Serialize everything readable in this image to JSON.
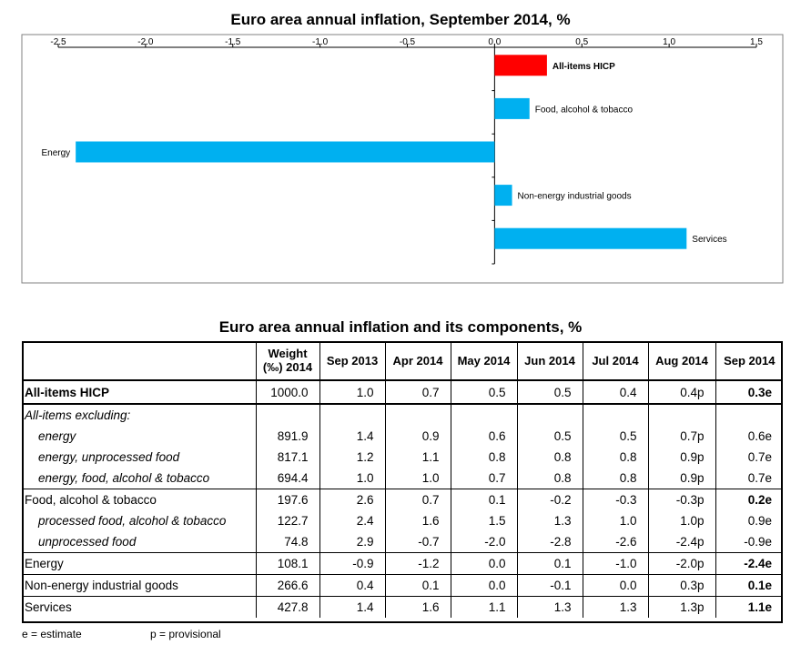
{
  "chart_data": {
    "type": "bar",
    "orientation": "horizontal",
    "title": "Euro area annual inflation, September 2014, %",
    "categories": [
      "All-items HICP",
      "Food, alcohol & tobacco",
      "Energy",
      "Non-energy industrial goods",
      "Services"
    ],
    "values": [
      0.3,
      0.2,
      -2.4,
      0.1,
      1.1
    ],
    "colors": [
      "#ff0000",
      "#00b0f0",
      "#00b0f0",
      "#00b0f0",
      "#00b0f0"
    ],
    "xlim": [
      -2.5,
      1.5
    ],
    "x_ticks": [
      -2.5,
      -2.0,
      -1.5,
      -1.0,
      -0.5,
      0.0,
      0.5,
      1.0,
      1.5
    ],
    "x_tick_labels": [
      "-2.5",
      "-2.0",
      "-1.5",
      "-1.0",
      "-0.5",
      "0.0",
      "0.5",
      "1.0",
      "1.5"
    ],
    "axis_position": "top",
    "grid": false,
    "xlabel": "",
    "ylabel": ""
  },
  "table": {
    "title": "Euro area annual inflation and its components, %",
    "headers": [
      "",
      "Weight (‰) 2014",
      "Sep 2013",
      "Apr 2014",
      "May 2014",
      "Jun 2014",
      "Jul 2014",
      "Aug 2014",
      "Sep 2014"
    ],
    "weight_header_line1": "Weight",
    "weight_header_line2": "(‰) 2014",
    "rows": [
      {
        "label": "All-items HICP",
        "values": [
          "1000.0",
          "1.0",
          "0.7",
          "0.5",
          "0.5",
          "0.4",
          "0.4p",
          "0.3e"
        ],
        "style": "bold-label"
      },
      {
        "label": "All-items excluding:",
        "values": [
          "",
          "",
          "",
          "",
          "",
          "",
          "",
          ""
        ],
        "style": "italic"
      },
      {
        "label": "energy",
        "values": [
          "891.9",
          "1.4",
          "0.9",
          "0.6",
          "0.5",
          "0.5",
          "0.7p",
          "0.6e"
        ],
        "style": "indent"
      },
      {
        "label": "energy, unprocessed food",
        "values": [
          "817.1",
          "1.2",
          "1.1",
          "0.8",
          "0.8",
          "0.8",
          "0.9p",
          "0.7e"
        ],
        "style": "indent"
      },
      {
        "label": "energy, food, alcohol & tobacco",
        "values": [
          "694.4",
          "1.0",
          "1.0",
          "0.7",
          "0.8",
          "0.8",
          "0.9p",
          "0.7e"
        ],
        "style": "indent"
      },
      {
        "label": "Food, alcohol & tobacco",
        "values": [
          "197.6",
          "2.6",
          "0.7",
          "0.1",
          "-0.2",
          "-0.3",
          "-0.3p",
          "0.2e"
        ],
        "style": "main"
      },
      {
        "label": "processed food, alcohol & tobacco",
        "values": [
          "122.7",
          "2.4",
          "1.6",
          "1.5",
          "1.3",
          "1.0",
          "1.0p",
          "0.9e"
        ],
        "style": "indent"
      },
      {
        "label": "unprocessed food",
        "values": [
          "74.8",
          "2.9",
          "-0.7",
          "-2.0",
          "-2.8",
          "-2.6",
          "-2.4p",
          "-0.9e"
        ],
        "style": "indent"
      },
      {
        "label": "Energy",
        "values": [
          "108.1",
          "-0.9",
          "-1.2",
          "0.0",
          "0.1",
          "-1.0",
          "-2.0p",
          "-2.4e"
        ],
        "style": "main"
      },
      {
        "label": "Non-energy industrial goods",
        "values": [
          "266.6",
          "0.4",
          "0.1",
          "0.0",
          "-0.1",
          "0.0",
          "0.3p",
          "0.1e"
        ],
        "style": "main"
      },
      {
        "label": "Services",
        "values": [
          "427.8",
          "1.4",
          "1.6",
          "1.1",
          "1.3",
          "1.3",
          "1.3p",
          "1.1e"
        ],
        "style": "main"
      }
    ]
  },
  "footnotes": {
    "estimate": "e = estimate",
    "provisional": "p = provisional"
  }
}
